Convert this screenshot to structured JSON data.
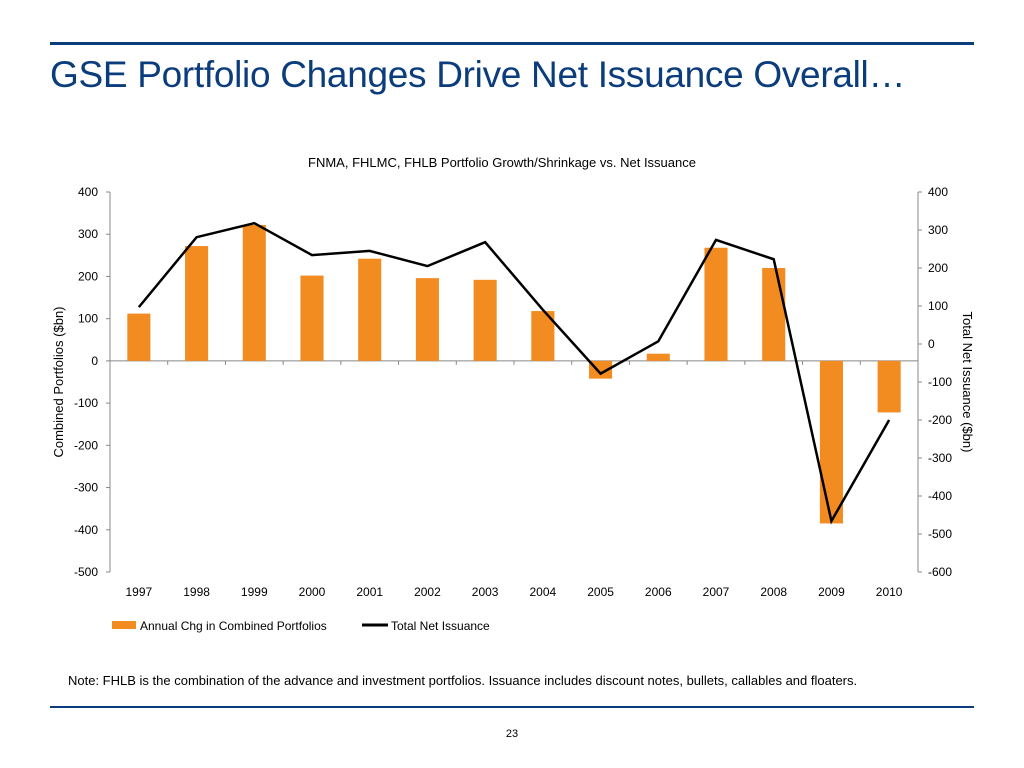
{
  "slide": {
    "title": "GSE Portfolio Changes Drive Net Issuance Overall…",
    "note": "Note:  FHLB is the combination of the advance and investment portfolios. Issuance includes discount notes, bullets, callables and floaters.",
    "page_number": "23"
  },
  "colors": {
    "accent": "#0b3c7c",
    "bar": "#f28c21",
    "line": "#000000"
  },
  "chart_data": {
    "type": "bar",
    "title": "FNMA, FHLMC, FHLB Portfolio Growth/Shrinkage vs. Net Issuance",
    "categories": [
      "1997",
      "1998",
      "1999",
      "2000",
      "2001",
      "2002",
      "2003",
      "2004",
      "2005",
      "2006",
      "2007",
      "2008",
      "2009",
      "2010"
    ],
    "series": [
      {
        "name": "Annual Chg in Combined Portfolios",
        "type": "bar",
        "axis": "left",
        "values": [
          112,
          272,
          322,
          202,
          242,
          196,
          192,
          118,
          -42,
          17,
          268,
          220,
          -385,
          -122
        ]
      },
      {
        "name": "Total Net Issuance",
        "type": "line",
        "axis": "right",
        "values": [
          97,
          281,
          318,
          234,
          245,
          205,
          268,
          90,
          -78,
          7,
          274,
          223,
          -466,
          -200
        ]
      }
    ],
    "left_axis": {
      "label": "Combined Portfolios ($bn)",
      "range": [
        -500,
        400
      ],
      "ticks": [
        400,
        300,
        200,
        100,
        0,
        -100,
        -200,
        -300,
        -400,
        -500
      ]
    },
    "right_axis": {
      "label": "Total Net Issuance ($bn)",
      "range": [
        -600,
        400
      ],
      "ticks": [
        400,
        300,
        200,
        100,
        0,
        -100,
        -200,
        -300,
        -400,
        -500,
        -600
      ]
    },
    "legend": {
      "position": "bottom",
      "entries": [
        "Annual Chg in Combined Portfolios",
        "Total Net Issuance"
      ]
    },
    "grid": false
  }
}
